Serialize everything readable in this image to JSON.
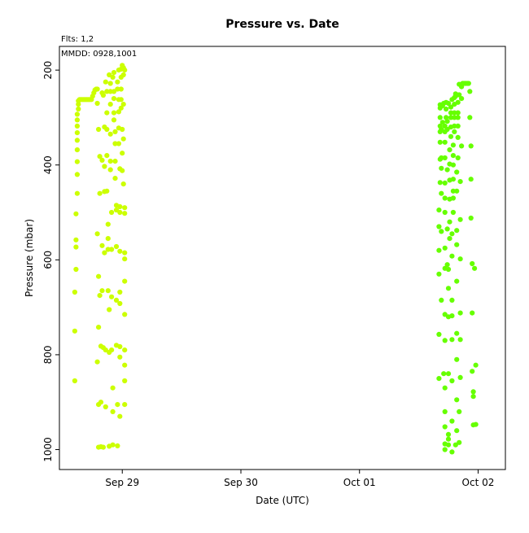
{
  "chart_data": {
    "type": "scatter",
    "title": "Pressure  vs. Date",
    "subtitle": "Flts: 1,2",
    "annotation": "MMDD: 0928,1001",
    "xlabel": "Date (UTC)",
    "ylabel": "Pressure (mbar)",
    "x_unit": "days (Sep 29 = 0)",
    "xlim": [
      -0.53,
      3.23
    ],
    "ylim": [
      1042,
      150
    ],
    "y_inverted": true,
    "grid": false,
    "x_ticks": [
      {
        "value": 0,
        "label": "Sep 29"
      },
      {
        "value": 1,
        "label": "Sep 30"
      },
      {
        "value": 2,
        "label": "Oct 01"
      },
      {
        "value": 3,
        "label": "Oct 02"
      }
    ],
    "y_ticks": [
      {
        "value": 200,
        "label": "200"
      },
      {
        "value": 400,
        "label": "400"
      },
      {
        "value": 600,
        "label": "600"
      },
      {
        "value": 800,
        "label": "800"
      },
      {
        "value": 1000,
        "label": "1000"
      }
    ],
    "series": [
      {
        "name": "1",
        "color": "#ccff00",
        "points": [
          [
            -0.4,
            855
          ],
          [
            -0.4,
            750
          ],
          [
            -0.4,
            668
          ],
          [
            -0.39,
            620
          ],
          [
            -0.39,
            573
          ],
          [
            -0.39,
            558
          ],
          [
            -0.39,
            503
          ],
          [
            -0.38,
            460
          ],
          [
            -0.38,
            420
          ],
          [
            -0.38,
            393
          ],
          [
            -0.38,
            368
          ],
          [
            -0.38,
            348
          ],
          [
            -0.38,
            332
          ],
          [
            -0.38,
            318
          ],
          [
            -0.38,
            305
          ],
          [
            -0.38,
            293
          ],
          [
            -0.37,
            282
          ],
          [
            -0.37,
            272
          ],
          [
            -0.37,
            265
          ],
          [
            -0.36,
            262
          ],
          [
            -0.35,
            262
          ],
          [
            -0.34,
            262
          ],
          [
            -0.33,
            262
          ],
          [
            -0.32,
            262
          ],
          [
            -0.31,
            262
          ],
          [
            -0.3,
            262
          ],
          [
            -0.29,
            262
          ],
          [
            -0.28,
            262
          ],
          [
            -0.27,
            262
          ],
          [
            -0.26,
            262
          ],
          [
            -0.25,
            255
          ],
          [
            -0.24,
            248
          ],
          [
            -0.23,
            242
          ],
          [
            -0.22,
            240
          ],
          [
            -0.21,
            240
          ],
          [
            -0.21,
            270
          ],
          [
            -0.2,
            325
          ],
          [
            -0.21,
            545
          ],
          [
            -0.2,
            635
          ],
          [
            -0.2,
            742
          ],
          [
            -0.21,
            815
          ],
          [
            -0.2,
            905
          ],
          [
            -0.2,
            995
          ],
          [
            -0.19,
            382
          ],
          [
            -0.19,
            460
          ],
          [
            -0.19,
            675
          ],
          [
            -0.18,
            782
          ],
          [
            -0.18,
            900
          ],
          [
            -0.18,
            994
          ],
          [
            -0.17,
            248
          ],
          [
            -0.17,
            390
          ],
          [
            -0.17,
            570
          ],
          [
            -0.17,
            665
          ],
          [
            -0.16,
            785
          ],
          [
            -0.16,
            995
          ],
          [
            -0.16,
            253
          ],
          [
            -0.15,
            320
          ],
          [
            -0.15,
            403
          ],
          [
            -0.15,
            456
          ],
          [
            -0.15,
            585
          ],
          [
            -0.14,
            790
          ],
          [
            -0.14,
            910
          ],
          [
            -0.14,
            225
          ],
          [
            -0.13,
            245
          ],
          [
            -0.13,
            290
          ],
          [
            -0.13,
            325
          ],
          [
            -0.13,
            380
          ],
          [
            -0.13,
            455
          ],
          [
            -0.12,
            525
          ],
          [
            -0.12,
            555
          ],
          [
            -0.12,
            578
          ],
          [
            -0.12,
            665
          ],
          [
            -0.11,
            705
          ],
          [
            -0.11,
            795
          ],
          [
            -0.11,
            993
          ],
          [
            -0.11,
            210
          ],
          [
            -0.1,
            228
          ],
          [
            -0.1,
            245
          ],
          [
            -0.1,
            272
          ],
          [
            -0.1,
            335
          ],
          [
            -0.1,
            392
          ],
          [
            -0.1,
            410
          ],
          [
            -0.09,
            500
          ],
          [
            -0.09,
            578
          ],
          [
            -0.09,
            678
          ],
          [
            -0.09,
            790
          ],
          [
            -0.08,
            870
          ],
          [
            -0.08,
            920
          ],
          [
            -0.08,
            990
          ],
          [
            -0.08,
            215
          ],
          [
            -0.07,
            205
          ],
          [
            -0.07,
            245
          ],
          [
            -0.07,
            260
          ],
          [
            -0.07,
            290
          ],
          [
            -0.07,
            305
          ],
          [
            -0.06,
            330
          ],
          [
            -0.06,
            355
          ],
          [
            -0.06,
            392
          ],
          [
            -0.06,
            428
          ],
          [
            -0.05,
            485
          ],
          [
            -0.05,
            495
          ],
          [
            -0.05,
            572
          ],
          [
            -0.05,
            685
          ],
          [
            -0.05,
            780
          ],
          [
            -0.04,
            905
          ],
          [
            -0.04,
            992
          ],
          [
            -0.04,
            225
          ],
          [
            -0.04,
            240
          ],
          [
            -0.03,
            200
          ],
          [
            -0.03,
            262
          ],
          [
            -0.03,
            288
          ],
          [
            -0.03,
            322
          ],
          [
            -0.03,
            355
          ],
          [
            -0.02,
            408
          ],
          [
            -0.02,
            488
          ],
          [
            -0.02,
            500
          ],
          [
            -0.02,
            582
          ],
          [
            -0.02,
            668
          ],
          [
            -0.02,
            692
          ],
          [
            -0.02,
            783
          ],
          [
            -0.02,
            805
          ],
          [
            -0.02,
            930
          ],
          [
            -0.01,
            198
          ],
          [
            -0.01,
            215
          ],
          [
            -0.01,
            240
          ],
          [
            -0.01,
            262
          ],
          [
            -0.01,
            280
          ],
          [
            -0.0,
            190
          ],
          [
            0.0,
            325
          ],
          [
            0.0,
            375
          ],
          [
            0.0,
            412
          ],
          [
            0.01,
            195
          ],
          [
            0.01,
            210
          ],
          [
            0.01,
            272
          ],
          [
            0.01,
            345
          ],
          [
            0.01,
            440
          ],
          [
            0.02,
            490
          ],
          [
            0.02,
            502
          ],
          [
            0.02,
            585
          ],
          [
            0.02,
            598
          ],
          [
            0.02,
            645
          ],
          [
            0.02,
            715
          ],
          [
            0.02,
            790
          ],
          [
            0.02,
            822
          ],
          [
            0.02,
            855
          ],
          [
            0.02,
            905
          ],
          [
            0.02,
            200
          ]
        ]
      },
      {
        "name": "2",
        "color": "#66ff00",
        "points": [
          [
            2.67,
            757
          ],
          [
            2.67,
            850
          ],
          [
            2.67,
            630
          ],
          [
            2.67,
            580
          ],
          [
            2.67,
            530
          ],
          [
            2.67,
            495
          ],
          [
            2.68,
            437
          ],
          [
            2.68,
            388
          ],
          [
            2.68,
            352
          ],
          [
            2.68,
            330
          ],
          [
            2.68,
            318
          ],
          [
            2.68,
            300
          ],
          [
            2.68,
            280
          ],
          [
            2.68,
            273
          ],
          [
            2.69,
            685
          ],
          [
            2.69,
            540
          ],
          [
            2.69,
            460
          ],
          [
            2.69,
            407
          ],
          [
            2.69,
            385
          ],
          [
            2.69,
            325
          ],
          [
            2.7,
            310
          ],
          [
            2.7,
            275
          ],
          [
            2.71,
            270
          ],
          [
            2.71,
            840
          ],
          [
            2.72,
            920
          ],
          [
            2.72,
            988
          ],
          [
            2.72,
            1000
          ],
          [
            2.72,
            952
          ],
          [
            2.72,
            870
          ],
          [
            2.72,
            770
          ],
          [
            2.72,
            715
          ],
          [
            2.72,
            618
          ],
          [
            2.72,
            575
          ],
          [
            2.72,
            500
          ],
          [
            2.72,
            470
          ],
          [
            2.72,
            438
          ],
          [
            2.72,
            385
          ],
          [
            2.72,
            352
          ],
          [
            2.72,
            330
          ],
          [
            2.72,
            318
          ],
          [
            2.73,
            300
          ],
          [
            2.73,
            282
          ],
          [
            2.73,
            268
          ],
          [
            2.74,
            610
          ],
          [
            2.74,
            535
          ],
          [
            2.74,
            410
          ],
          [
            2.74,
            325
          ],
          [
            2.74,
            308
          ],
          [
            2.75,
            270
          ],
          [
            2.75,
            990
          ],
          [
            2.75,
            978
          ],
          [
            2.75,
            968
          ],
          [
            2.75,
            840
          ],
          [
            2.75,
            720
          ],
          [
            2.75,
            660
          ],
          [
            2.75,
            620
          ],
          [
            2.76,
            555
          ],
          [
            2.76,
            520
          ],
          [
            2.76,
            472
          ],
          [
            2.76,
            432
          ],
          [
            2.76,
            398
          ],
          [
            2.76,
            368
          ],
          [
            2.77,
            340
          ],
          [
            2.77,
            320
          ],
          [
            2.77,
            300
          ],
          [
            2.77,
            290
          ],
          [
            2.77,
            278
          ],
          [
            2.78,
            262
          ],
          [
            2.78,
            1005
          ],
          [
            2.78,
            940
          ],
          [
            2.78,
            855
          ],
          [
            2.78,
            768
          ],
          [
            2.78,
            718
          ],
          [
            2.78,
            685
          ],
          [
            2.78,
            592
          ],
          [
            2.78,
            545
          ],
          [
            2.79,
            500
          ],
          [
            2.79,
            470
          ],
          [
            2.79,
            455
          ],
          [
            2.79,
            430
          ],
          [
            2.79,
            400
          ],
          [
            2.79,
            380
          ],
          [
            2.79,
            358
          ],
          [
            2.8,
            330
          ],
          [
            2.8,
            318
          ],
          [
            2.8,
            300
          ],
          [
            2.8,
            290
          ],
          [
            2.8,
            272
          ],
          [
            2.8,
            258
          ],
          [
            2.81,
            255
          ],
          [
            2.81,
            250
          ],
          [
            2.81,
            990
          ],
          [
            2.82,
            960
          ],
          [
            2.82,
            895
          ],
          [
            2.82,
            810
          ],
          [
            2.82,
            755
          ],
          [
            2.82,
            645
          ],
          [
            2.82,
            568
          ],
          [
            2.82,
            538
          ],
          [
            2.82,
            455
          ],
          [
            2.82,
            415
          ],
          [
            2.83,
            385
          ],
          [
            2.83,
            342
          ],
          [
            2.83,
            318
          ],
          [
            2.83,
            300
          ],
          [
            2.83,
            290
          ],
          [
            2.83,
            268
          ],
          [
            2.84,
            252
          ],
          [
            2.84,
            230
          ],
          [
            2.84,
            985
          ],
          [
            2.84,
            920
          ],
          [
            2.85,
            848
          ],
          [
            2.85,
            768
          ],
          [
            2.85,
            712
          ],
          [
            2.85,
            598
          ],
          [
            2.85,
            515
          ],
          [
            2.85,
            435
          ],
          [
            2.86,
            360
          ],
          [
            2.86,
            260
          ],
          [
            2.86,
            235
          ],
          [
            2.87,
            228
          ],
          [
            2.88,
            228
          ],
          [
            2.89,
            228
          ],
          [
            2.9,
            228
          ],
          [
            2.91,
            228
          ],
          [
            2.92,
            228
          ],
          [
            2.93,
            245
          ],
          [
            2.93,
            300
          ],
          [
            2.94,
            360
          ],
          [
            2.94,
            430
          ],
          [
            2.94,
            512
          ],
          [
            2.95,
            608
          ],
          [
            2.95,
            712
          ],
          [
            2.95,
            835
          ],
          [
            2.96,
            878
          ],
          [
            2.96,
            888
          ],
          [
            2.96,
            948
          ],
          [
            2.97,
            618
          ],
          [
            2.98,
            822
          ],
          [
            2.98,
            947
          ]
        ]
      }
    ]
  }
}
